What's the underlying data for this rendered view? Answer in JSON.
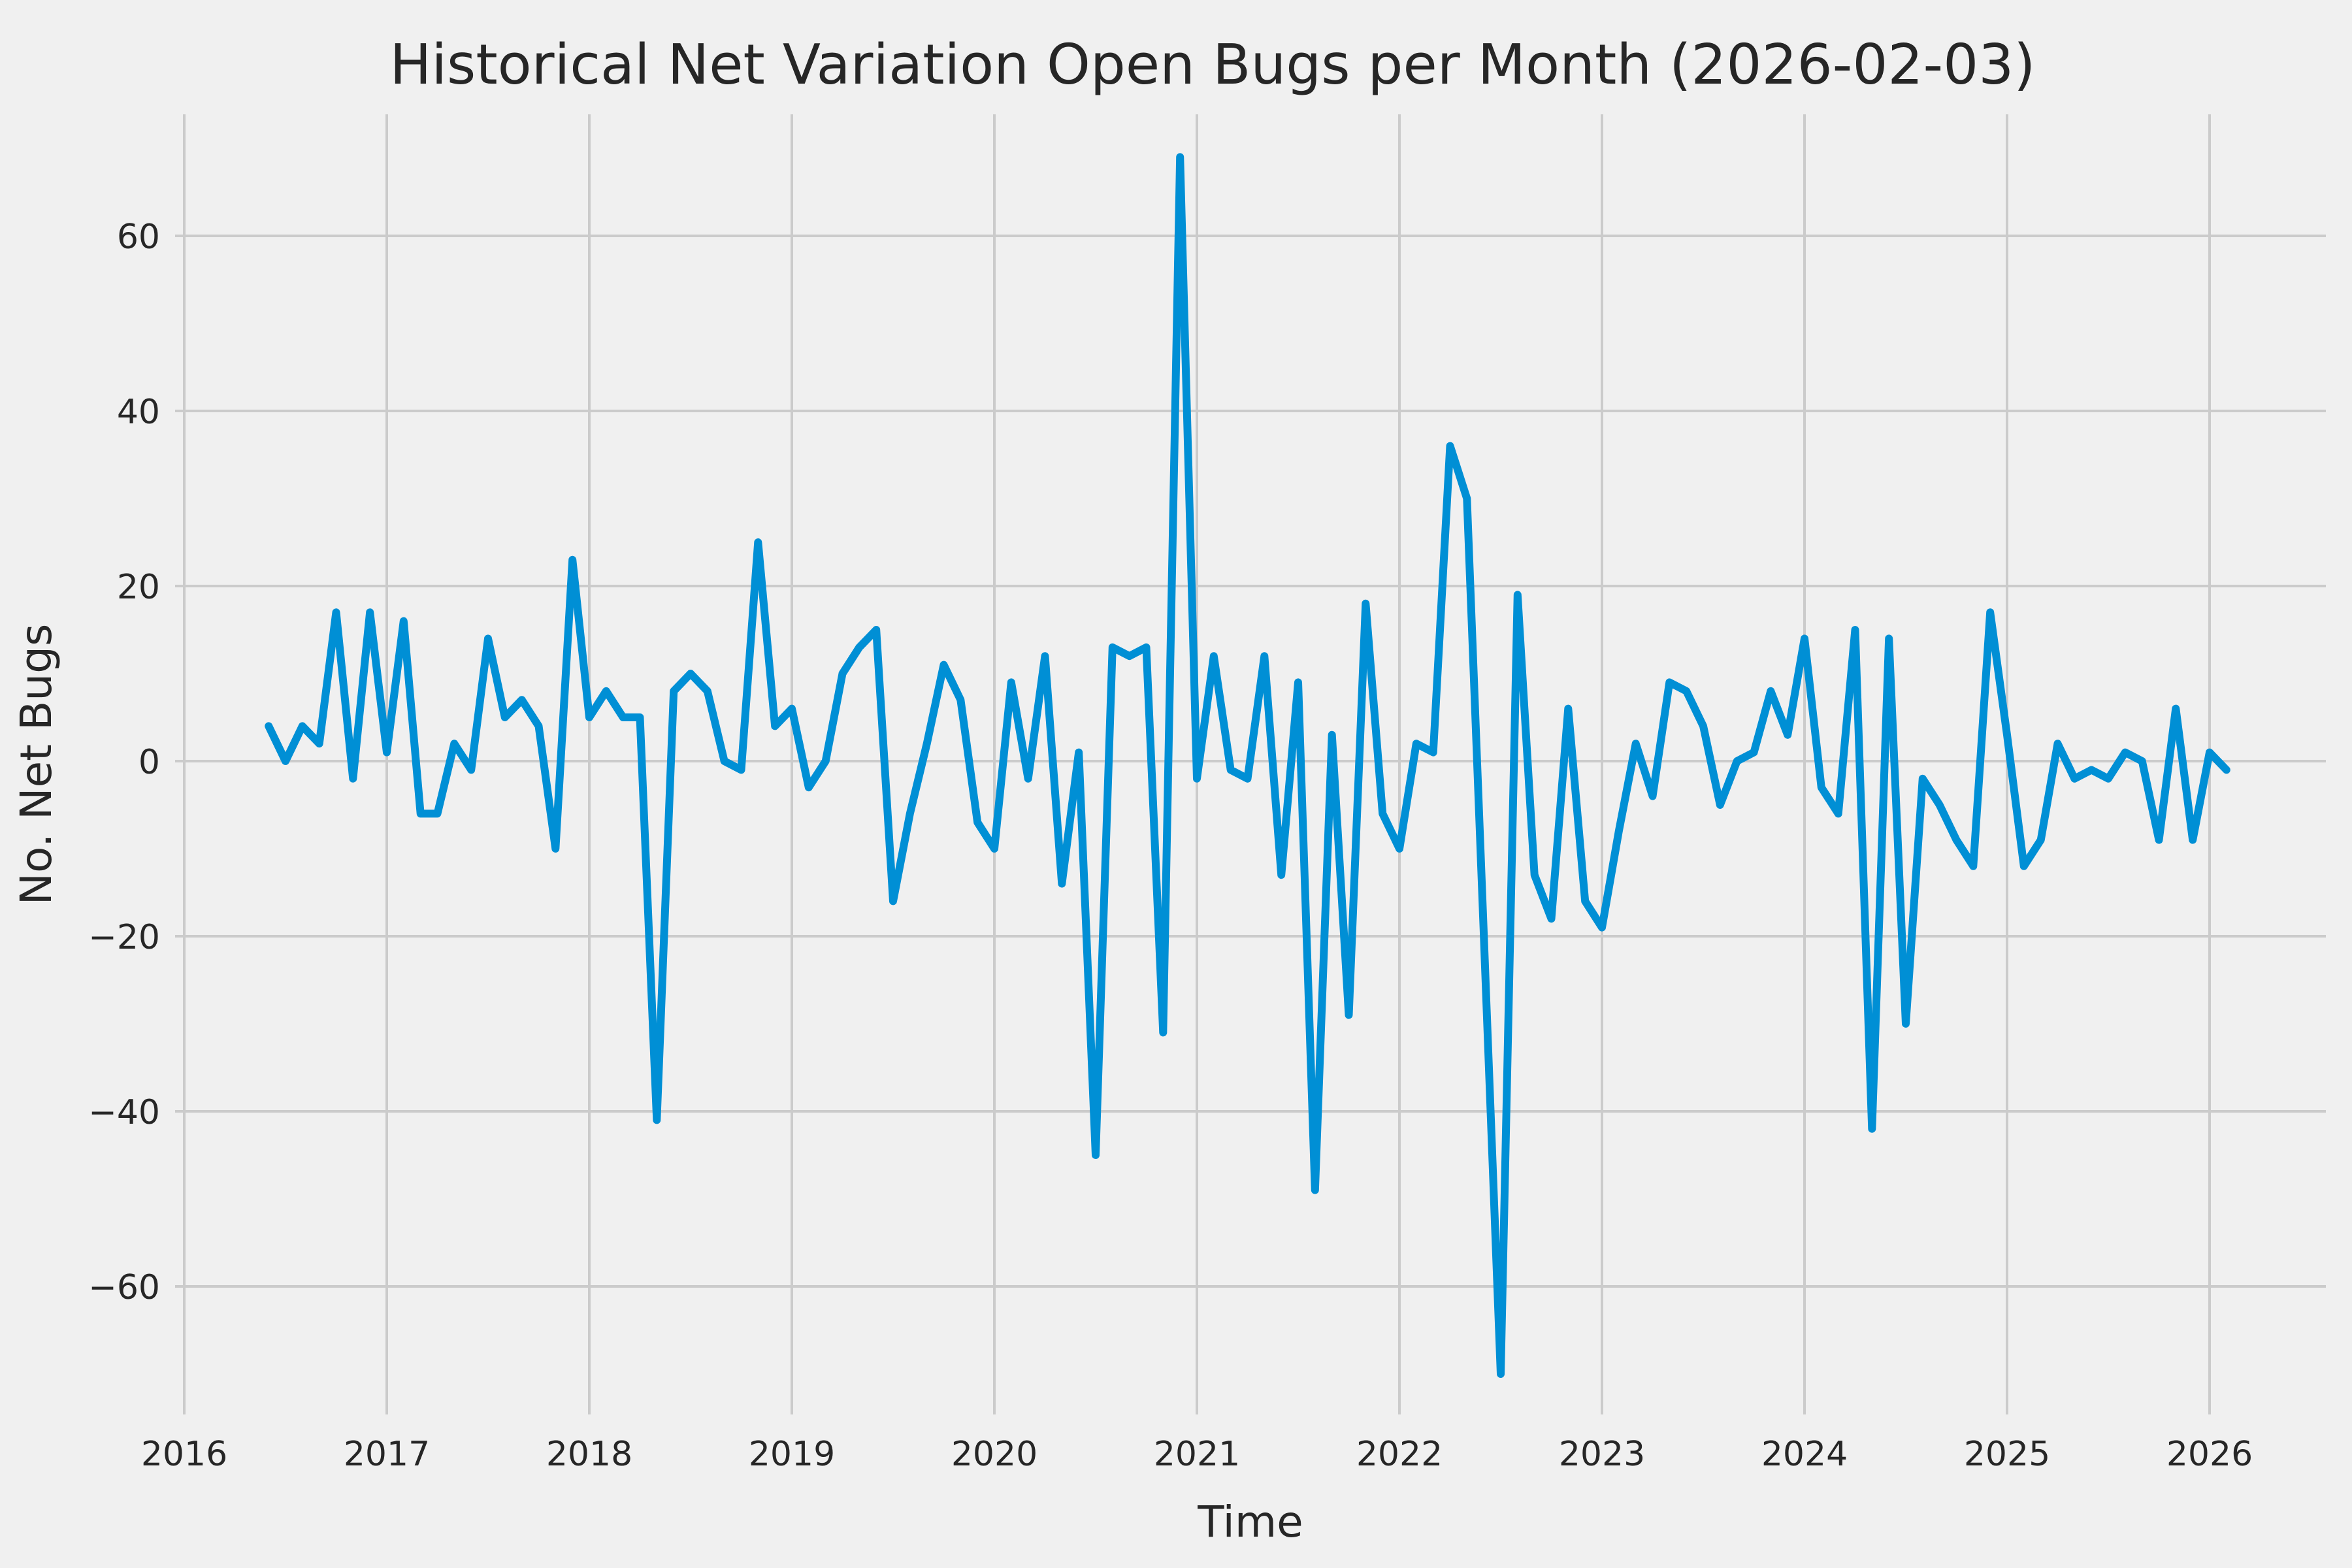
{
  "chart_data": {
    "type": "line",
    "title": "Historical Net Variation Open Bugs per Month (2026-02-03)",
    "xlabel": "Time",
    "ylabel": "No. Net Bugs",
    "x_tick_labels": [
      "2016",
      "2017",
      "2018",
      "2019",
      "2020",
      "2021",
      "2022",
      "2023",
      "2024",
      "2025",
      "2026"
    ],
    "y_tick_values": [
      -60,
      -40,
      -20,
      0,
      20,
      40,
      60
    ],
    "ylim": [
      -74.6,
      73.9
    ],
    "xlim_months": [
      "2016-01",
      "2026-08"
    ],
    "grid": true,
    "legend_position": "none",
    "start_month": "2016-06",
    "end_month": "2026-02",
    "frequency": "monthly",
    "series": [
      {
        "name": "No. Net Bugs",
        "color": "#008fd5",
        "values": [
          4,
          0,
          4,
          2,
          17,
          -2,
          17,
          1,
          16,
          -6,
          -6,
          2,
          -1,
          14,
          5,
          7,
          4,
          -10,
          23,
          5,
          8,
          5,
          5,
          -41,
          8,
          10,
          8,
          0,
          -1,
          25,
          4,
          6,
          -3,
          0,
          10,
          13,
          15,
          -16,
          -6,
          2,
          11,
          7,
          -7,
          -10,
          9,
          -2,
          12,
          -14,
          1,
          -45,
          13,
          12,
          13,
          -31,
          69,
          -2,
          12,
          -1,
          -2,
          12,
          -13,
          9,
          -49,
          3,
          -29,
          18,
          -6,
          -10,
          2,
          1,
          36,
          30,
          -20,
          -70,
          19,
          -13,
          -18,
          6,
          -16,
          -19,
          -8,
          2,
          -4,
          9,
          8,
          4,
          -5,
          0,
          1,
          8,
          3,
          14,
          -3,
          -6,
          15,
          -42,
          14,
          -30,
          -2,
          -5,
          -9,
          -12,
          17,
          3,
          -12,
          -9,
          2,
          -2,
          -1,
          -2,
          1,
          0,
          -9,
          6,
          -9,
          1,
          -1
        ]
      }
    ],
    "colors": {
      "background": "#f0f0f0",
      "grid": "#cbcbcb",
      "line": "#008fd5",
      "text": "#262626"
    }
  }
}
